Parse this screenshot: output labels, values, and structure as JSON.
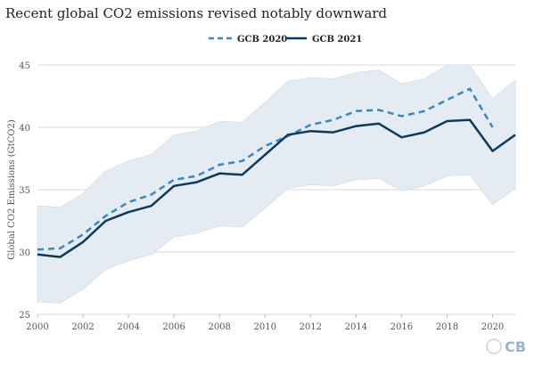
{
  "header": {
    "title": "Recent global CO2 emissions revised notably downward"
  },
  "logo": {
    "text": "CB"
  },
  "colors": {
    "gcb2020": "#3a87c0",
    "gcb2021": "#0e3a5a",
    "band": "#e4ebf2",
    "grid": "#d8d8d8"
  },
  "chart_data": {
    "type": "line",
    "title": "Recent global CO2 emissions revised notably downward",
    "xlabel": "",
    "ylabel": "Global CO2 Emissions (GtCO2)",
    "xlim": [
      2000,
      2021
    ],
    "ylim": [
      25,
      45
    ],
    "yticks": [
      25,
      30,
      35,
      40,
      45
    ],
    "xticks": [
      2000,
      2002,
      2004,
      2006,
      2008,
      2010,
      2012,
      2014,
      2016,
      2018,
      2020
    ],
    "legend_position": "top-center",
    "series": [
      {
        "name": "GCB 2020",
        "style": "dashed",
        "x": [
          2000,
          2001,
          2002,
          2003,
          2004,
          2005,
          2006,
          2007,
          2008,
          2009,
          2010,
          2011,
          2012,
          2013,
          2014,
          2015,
          2016,
          2017,
          2018,
          2019,
          2020
        ],
        "values": [
          30.2,
          30.3,
          31.4,
          32.9,
          34.0,
          34.6,
          35.8,
          36.1,
          37.0,
          37.3,
          38.5,
          39.3,
          40.2,
          40.6,
          41.3,
          41.4,
          40.9,
          41.3,
          42.2,
          43.1,
          40.0
        ]
      },
      {
        "name": "GCB 2021",
        "style": "solid",
        "x": [
          2000,
          2001,
          2002,
          2003,
          2004,
          2005,
          2006,
          2007,
          2008,
          2009,
          2010,
          2011,
          2012,
          2013,
          2014,
          2015,
          2016,
          2017,
          2018,
          2019,
          2020,
          2021
        ],
        "values": [
          29.8,
          29.6,
          30.8,
          32.5,
          33.2,
          33.7,
          35.3,
          35.6,
          36.3,
          36.2,
          37.8,
          39.4,
          39.7,
          39.6,
          40.1,
          40.3,
          39.2,
          39.6,
          40.5,
          40.6,
          38.1,
          39.4
        ]
      }
    ],
    "uncertainty_band": {
      "x": [
        2000,
        2001,
        2002,
        2003,
        2004,
        2005,
        2006,
        2007,
        2008,
        2009,
        2010,
        2011,
        2012,
        2013,
        2014,
        2015,
        2016,
        2017,
        2018,
        2019,
        2020,
        2021
      ],
      "upper": [
        33.7,
        33.6,
        34.7,
        36.5,
        37.3,
        37.8,
        39.4,
        39.7,
        40.5,
        40.4,
        42.0,
        43.7,
        44.0,
        43.9,
        44.4,
        44.6,
        43.5,
        43.9,
        45.0,
        45.0,
        42.3,
        43.8
      ],
      "lower": [
        26.0,
        25.9,
        27.0,
        28.6,
        29.3,
        29.8,
        31.2,
        31.5,
        32.1,
        32.0,
        33.5,
        35.1,
        35.4,
        35.3,
        35.8,
        35.9,
        34.9,
        35.3,
        36.1,
        36.2,
        33.8,
        35.1
      ]
    }
  }
}
